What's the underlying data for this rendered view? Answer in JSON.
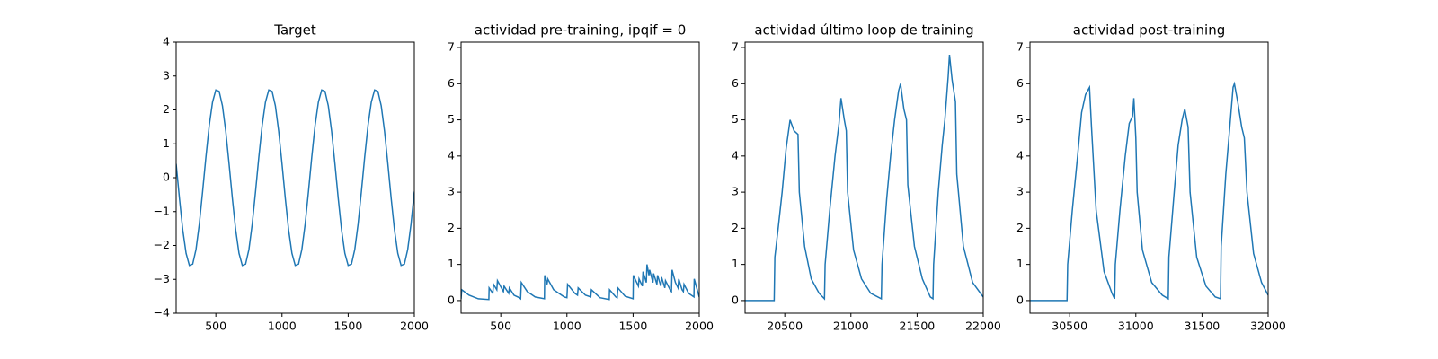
{
  "chart_data": [
    {
      "type": "line",
      "title": "Target",
      "color": "#1f77b4",
      "x": [
        200,
        225,
        250,
        275,
        300,
        325,
        350,
        375,
        400,
        425,
        450,
        475,
        500,
        525,
        550,
        575,
        600,
        625,
        650,
        675,
        700,
        725,
        750,
        775,
        800,
        825,
        850,
        875,
        900,
        925,
        950,
        975,
        1000,
        1025,
        1050,
        1075,
        1100,
        1125,
        1150,
        1175,
        1200,
        1225,
        1250,
        1275,
        1300,
        1325,
        1350,
        1375,
        1400,
        1425,
        1450,
        1475,
        1500,
        1525,
        1550,
        1575,
        1600,
        1625,
        1650,
        1675,
        1700,
        1725,
        1750,
        1775,
        1800,
        1825,
        1850,
        1875,
        1900,
        1925,
        1950,
        1975,
        2000
      ],
      "values": [
        0.41,
        -0.61,
        -1.54,
        -2.23,
        -2.59,
        -2.55,
        -2.12,
        -1.37,
        -0.41,
        0.61,
        1.54,
        2.23,
        2.59,
        2.55,
        2.12,
        1.37,
        0.41,
        -0.61,
        -1.54,
        -2.23,
        -2.59,
        -2.55,
        -2.12,
        -1.37,
        -0.41,
        0.61,
        1.54,
        2.23,
        2.59,
        2.55,
        2.12,
        1.37,
        0.41,
        -0.61,
        -1.54,
        -2.23,
        -2.59,
        -2.55,
        -2.12,
        -1.37,
        -0.41,
        0.61,
        1.54,
        2.23,
        2.59,
        2.55,
        2.12,
        1.37,
        0.41,
        -0.61,
        -1.54,
        -2.23,
        -2.59,
        -2.55,
        -2.12,
        -1.37,
        -0.41,
        0.61,
        1.54,
        2.23,
        2.59,
        2.55,
        2.12,
        1.37,
        0.41,
        -0.61,
        -1.54,
        -2.23,
        -2.59,
        -2.55,
        -2.12,
        -1.37,
        -0.41
      ],
      "xlim": [
        200,
        2000
      ],
      "ylim": [
        -4,
        4
      ],
      "xticks": [
        500,
        1000,
        1500,
        2000
      ],
      "yticks": [
        {
          "value": -4,
          "label": "−4"
        },
        {
          "value": -3,
          "label": "−3"
        },
        {
          "value": -2,
          "label": "−2"
        },
        {
          "value": -1,
          "label": "−1"
        },
        0,
        1,
        2,
        3,
        4
      ]
    },
    {
      "type": "line",
      "title": "actividad pre-training, ipqif = 0",
      "color": "#1f77b4",
      "x": [
        200,
        205,
        260,
        330,
        410,
        412,
        440,
        445,
        470,
        475,
        520,
        525,
        560,
        565,
        600,
        640,
        650,
        655,
        700,
        760,
        830,
        832,
        850,
        855,
        900,
        980,
        1000,
        1005,
        1060,
        1080,
        1085,
        1140,
        1180,
        1185,
        1250,
        1320,
        1322,
        1370,
        1380,
        1385,
        1440,
        1500,
        1502,
        1540,
        1545,
        1570,
        1575,
        1600,
        1605,
        1620,
        1625,
        1650,
        1655,
        1680,
        1685,
        1710,
        1715,
        1740,
        1745,
        1780,
        1790,
        1795,
        1820,
        1840,
        1845,
        1870,
        1880,
        1885,
        1920,
        1960,
        1962,
        2000
      ],
      "values": [
        0.05,
        0.3,
        0.15,
        0.05,
        0.03,
        0.35,
        0.2,
        0.45,
        0.3,
        0.55,
        0.25,
        0.4,
        0.2,
        0.35,
        0.15,
        0.08,
        0.05,
        0.5,
        0.25,
        0.1,
        0.05,
        0.7,
        0.45,
        0.6,
        0.3,
        0.1,
        0.08,
        0.45,
        0.2,
        0.15,
        0.35,
        0.15,
        0.1,
        0.3,
        0.08,
        0.03,
        0.3,
        0.1,
        0.08,
        0.35,
        0.12,
        0.05,
        0.7,
        0.4,
        0.6,
        0.4,
        0.8,
        0.5,
        1.0,
        0.7,
        0.85,
        0.5,
        0.75,
        0.45,
        0.7,
        0.4,
        0.65,
        0.35,
        0.55,
        0.3,
        0.25,
        0.85,
        0.5,
        0.35,
        0.6,
        0.3,
        0.25,
        0.45,
        0.2,
        0.1,
        0.6,
        0.1
      ],
      "xlim": [
        200,
        2000
      ],
      "ylim": [
        -0.35,
        7.15
      ],
      "xticks": [
        500,
        1000,
        1500,
        2000
      ],
      "yticks": [
        0,
        1,
        2,
        3,
        4,
        5,
        6,
        7
      ]
    },
    {
      "type": "line",
      "title": "actividad último loop de training",
      "color": "#1f77b4",
      "x": [
        20200,
        20420,
        20425,
        20450,
        20480,
        20510,
        20540,
        20570,
        20600,
        20610,
        20650,
        20700,
        20760,
        20800,
        20805,
        20840,
        20880,
        20910,
        20925,
        20950,
        20965,
        20975,
        21020,
        21080,
        21150,
        21230,
        21235,
        21270,
        21300,
        21330,
        21360,
        21375,
        21400,
        21420,
        21430,
        21480,
        21540,
        21600,
        21620,
        21625,
        21660,
        21690,
        21710,
        21735,
        21745,
        21765,
        21790,
        21800,
        21850,
        21920,
        22000
      ],
      "values": [
        0,
        0,
        1.2,
        2.0,
        3.0,
        4.2,
        5.0,
        4.7,
        4.6,
        3.0,
        1.5,
        0.6,
        0.2,
        0.05,
        1.0,
        2.5,
        4.0,
        4.9,
        5.6,
        5.0,
        4.7,
        3.0,
        1.4,
        0.6,
        0.2,
        0.05,
        1.0,
        2.8,
        4.0,
        5.0,
        5.8,
        6.0,
        5.3,
        5.0,
        3.2,
        1.5,
        0.6,
        0.1,
        0.05,
        1.0,
        3.0,
        4.3,
        5.0,
        6.2,
        6.8,
        6.1,
        5.5,
        3.5,
        1.5,
        0.5,
        0.1
      ],
      "xlim": [
        20200,
        22000
      ],
      "ylim": [
        -0.35,
        7.15
      ],
      "xticks": [
        20500,
        21000,
        21500,
        22000
      ],
      "yticks": [
        0,
        1,
        2,
        3,
        4,
        5,
        6,
        7
      ]
    },
    {
      "type": "line",
      "title": "actividad post-training",
      "color": "#1f77b4",
      "x": [
        30200,
        30480,
        30485,
        30520,
        30560,
        30590,
        30620,
        30650,
        30665,
        30700,
        30760,
        30820,
        30840,
        30845,
        30880,
        30920,
        30950,
        30975,
        30985,
        31000,
        31010,
        31050,
        31120,
        31200,
        31245,
        31250,
        31290,
        31320,
        31350,
        31370,
        31395,
        31410,
        31460,
        31530,
        31600,
        31640,
        31645,
        31680,
        31710,
        31735,
        31745,
        31770,
        31800,
        31820,
        31840,
        31890,
        31950,
        32000
      ],
      "values": [
        0,
        0,
        1.0,
        2.5,
        4.0,
        5.2,
        5.7,
        5.9,
        4.8,
        2.5,
        0.8,
        0.2,
        0.05,
        1.0,
        2.5,
        4.0,
        4.9,
        5.1,
        5.6,
        4.5,
        3.0,
        1.4,
        0.5,
        0.15,
        0.05,
        1.2,
        3.0,
        4.3,
        5.0,
        5.3,
        4.8,
        3.0,
        1.2,
        0.4,
        0.1,
        0.05,
        1.5,
        3.5,
        4.8,
        5.9,
        6.0,
        5.5,
        4.8,
        4.5,
        3.0,
        1.3,
        0.5,
        0.15
      ],
      "xlim": [
        30200,
        32000
      ],
      "ylim": [
        -0.35,
        7.15
      ],
      "xticks": [
        30500,
        31000,
        31500,
        32000
      ],
      "yticks": [
        0,
        1,
        2,
        3,
        4,
        5,
        6,
        7
      ]
    }
  ]
}
